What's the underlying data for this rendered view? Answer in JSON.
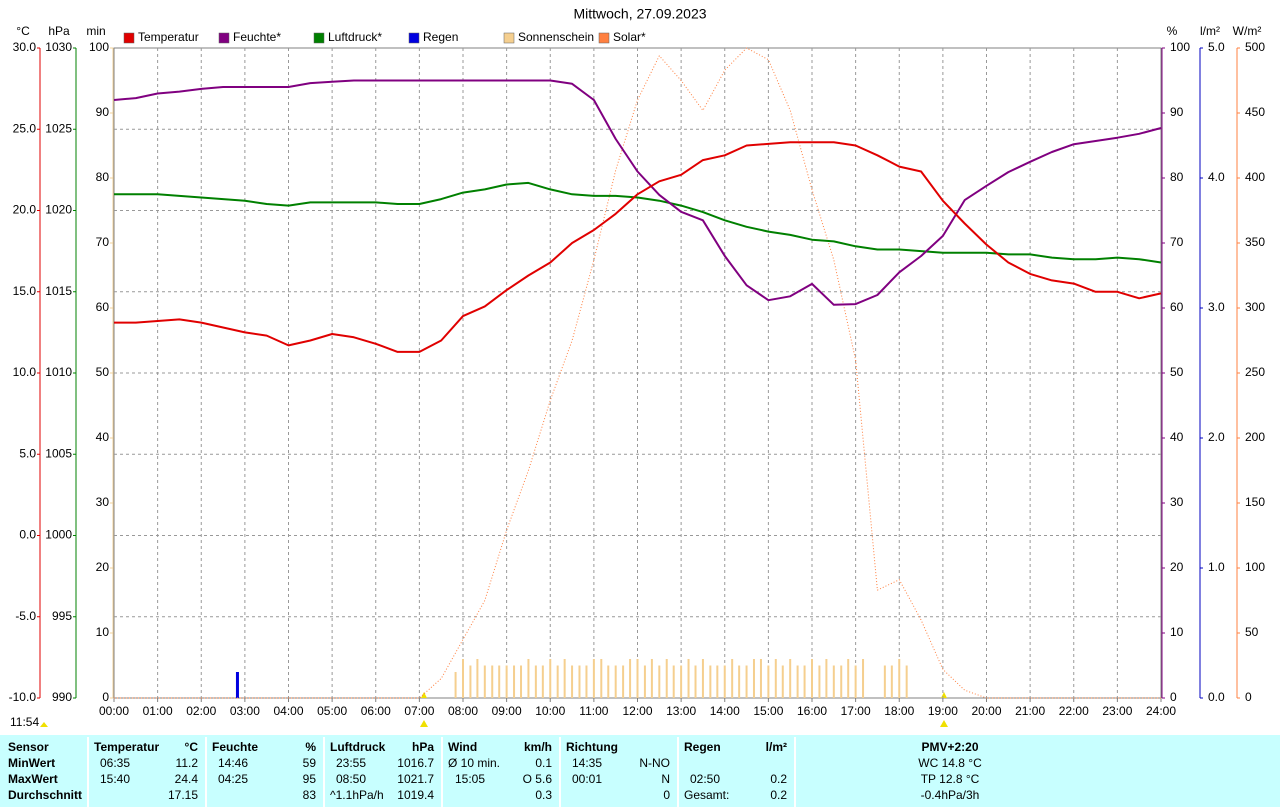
{
  "chart_data": {
    "type": "line",
    "title": "Mittwoch, 27.09.2023",
    "grid": true,
    "legend": "top",
    "xlim": [
      0,
      24
    ],
    "xticks": [
      {
        "value": 0,
        "label": "00:00"
      },
      {
        "value": 1,
        "label": "01:00"
      },
      {
        "value": 2,
        "label": "02:00"
      },
      {
        "value": 3,
        "label": "03:00"
      },
      {
        "value": 4,
        "label": "04:00"
      },
      {
        "value": 5,
        "label": "05:00"
      },
      {
        "value": 6,
        "label": "06:00"
      },
      {
        "value": 7,
        "label": "07:00"
      },
      {
        "value": 8,
        "label": "08:00"
      },
      {
        "value": 9,
        "label": "09:00"
      },
      {
        "value": 10,
        "label": "10:00"
      },
      {
        "value": 11,
        "label": "11:00"
      },
      {
        "value": 12,
        "label": "12:00"
      },
      {
        "value": 13,
        "label": "13:00"
      },
      {
        "value": 14,
        "label": "14:00"
      },
      {
        "value": 15,
        "label": "15:00"
      },
      {
        "value": 16,
        "label": "16:00"
      },
      {
        "value": 17,
        "label": "17:00"
      },
      {
        "value": 18,
        "label": "18:00"
      },
      {
        "value": 19,
        "label": "19:00"
      },
      {
        "value": 20,
        "label": "20:00"
      },
      {
        "value": 21,
        "label": "21:00"
      },
      {
        "value": 22,
        "label": "22:00"
      },
      {
        "value": 23,
        "label": "23:00"
      },
      {
        "value": 24,
        "label": "24:00"
      }
    ],
    "axes": {
      "y": {
        "label": "°C",
        "color": "#e00000",
        "side": "left",
        "lim": [
          -10,
          30
        ],
        "ticks": [
          {
            "value": -10,
            "label": "-10.0"
          },
          {
            "value": -5,
            "label": "-5.0"
          },
          {
            "value": 0,
            "label": "0.0"
          },
          {
            "value": 5,
            "label": "5.0"
          },
          {
            "value": 10,
            "label": "10.0"
          },
          {
            "value": 15,
            "label": "15.0"
          },
          {
            "value": 20,
            "label": "20.0"
          },
          {
            "value": 25,
            "label": "25.0"
          },
          {
            "value": 30,
            "label": "30.0"
          }
        ]
      },
      "y2": {
        "label": "hPa",
        "color": "#008000",
        "side": "left",
        "lim": [
          990,
          1030
        ],
        "ticks": [
          990,
          995,
          1000,
          1005,
          1010,
          1015,
          1020,
          1025,
          1030
        ]
      },
      "y3": {
        "label": "min",
        "color": "#f0d098",
        "side": "left",
        "lim": [
          0,
          100
        ],
        "ticks": [
          0,
          10,
          20,
          30,
          40,
          50,
          60,
          70,
          80,
          90,
          100
        ]
      },
      "y4": {
        "label": "%",
        "color": "#800080",
        "side": "right",
        "lim": [
          0,
          100
        ],
        "ticks": [
          0,
          10,
          20,
          30,
          40,
          50,
          60,
          70,
          80,
          90,
          100
        ]
      },
      "y5": {
        "label": "l/m²",
        "color": "#0000c0",
        "side": "right",
        "lim": [
          0,
          5
        ],
        "ticks": [
          {
            "value": 0,
            "label": "0.0"
          },
          {
            "value": 1,
            "label": "1.0"
          },
          {
            "value": 2,
            "label": "2.0"
          },
          {
            "value": 3,
            "label": "3.0"
          },
          {
            "value": 4,
            "label": "4.0"
          },
          {
            "value": 5,
            "label": "5.0"
          }
        ]
      },
      "y6": {
        "label": "W/m²",
        "color": "#ff8040",
        "side": "right",
        "lim": [
          0,
          500
        ],
        "ticks": [
          0,
          50,
          100,
          150,
          200,
          250,
          300,
          350,
          400,
          450,
          500
        ]
      }
    },
    "x": [
      0,
      0.5,
      1,
      1.5,
      2,
      2.5,
      3,
      3.5,
      4,
      4.5,
      5,
      5.5,
      6,
      6.5,
      7,
      7.5,
      8,
      8.5,
      9,
      9.5,
      10,
      10.5,
      11,
      11.5,
      12,
      12.5,
      13,
      13.5,
      14,
      14.5,
      15,
      15.5,
      16,
      16.5,
      17,
      17.5,
      18,
      18.5,
      19,
      19.5,
      20,
      20.5,
      21,
      21.5,
      22,
      22.5,
      23,
      23.5,
      24
    ],
    "series": [
      {
        "name": "Temperatur",
        "color": "#e00000",
        "axis": "y",
        "type": "line",
        "values": [
          13.1,
          13.1,
          13.2,
          13.3,
          13.1,
          12.8,
          12.5,
          12.3,
          11.7,
          12.0,
          12.4,
          12.2,
          11.8,
          11.3,
          11.3,
          12.0,
          13.5,
          14.1,
          15.1,
          16.0,
          16.8,
          18.0,
          18.8,
          19.8,
          21.0,
          21.8,
          22.2,
          23.1,
          23.4,
          24.0,
          24.1,
          24.2,
          24.2,
          24.2,
          24.0,
          23.4,
          22.7,
          22.4,
          20.6,
          19.2,
          17.9,
          16.8,
          16.1,
          15.7,
          15.5,
          15.0,
          15.0,
          14.6,
          14.9
        ]
      },
      {
        "name": "Feuchte*",
        "color": "#800080",
        "axis": "y4",
        "type": "line",
        "values": [
          92,
          92.3,
          93,
          93.3,
          93.7,
          94,
          94,
          94,
          94,
          94.6,
          94.8,
          95,
          95,
          95,
          95,
          95,
          95,
          95,
          95,
          95,
          95,
          94.5,
          92,
          86,
          81,
          77.4,
          74.8,
          73.5,
          68,
          63.5,
          61.2,
          61.8,
          63.7,
          60.5,
          60.6,
          62,
          65.5,
          68,
          71.1,
          76.6,
          78.8,
          80.9,
          82.5,
          84,
          85.2,
          85.7,
          86.2,
          86.8,
          87.7
        ]
      },
      {
        "name": "Luftdruck*",
        "color": "#008000",
        "axis": "y2",
        "type": "line",
        "values": [
          1021.0,
          1021.0,
          1021.0,
          1020.9,
          1020.8,
          1020.7,
          1020.6,
          1020.4,
          1020.3,
          1020.5,
          1020.5,
          1020.5,
          1020.5,
          1020.4,
          1020.4,
          1020.7,
          1021.1,
          1021.3,
          1021.6,
          1021.7,
          1021.3,
          1021.0,
          1020.9,
          1020.9,
          1020.8,
          1020.6,
          1020.3,
          1019.9,
          1019.4,
          1019.0,
          1018.7,
          1018.5,
          1018.2,
          1018.1,
          1017.8,
          1017.6,
          1017.6,
          1017.5,
          1017.4,
          1017.4,
          1017.4,
          1017.3,
          1017.3,
          1017.1,
          1017.0,
          1017.0,
          1017.1,
          1017.0,
          1016.8
        ]
      },
      {
        "name": "Regen",
        "color": "#0000e0",
        "axis": "y5",
        "type": "bar",
        "x": [
          2.83
        ],
        "values": [
          0.2
        ]
      },
      {
        "name": "Sonnenschein",
        "color": "#f5cf8f",
        "axis": "y3",
        "type": "bar",
        "x": [
          7.83,
          8,
          8.17,
          8.33,
          8.5,
          8.67,
          8.83,
          9,
          9.17,
          9.33,
          9.5,
          9.67,
          9.83,
          10,
          10.17,
          10.33,
          10.5,
          10.67,
          10.83,
          11,
          11.17,
          11.33,
          11.5,
          11.67,
          11.83,
          12,
          12.17,
          12.33,
          12.5,
          12.67,
          12.83,
          13,
          13.17,
          13.33,
          13.5,
          13.67,
          13.83,
          14,
          14.17,
          14.33,
          14.5,
          14.67,
          14.83,
          15,
          15.17,
          15.33,
          15.5,
          15.67,
          15.83,
          16,
          16.17,
          16.33,
          16.5,
          16.67,
          16.83,
          17,
          17.17,
          17.67,
          17.83,
          18,
          18.17
        ],
        "values": [
          4,
          6,
          5,
          6,
          5,
          5,
          5,
          5,
          5,
          5,
          6,
          5,
          5,
          6,
          5,
          6,
          5,
          5,
          5,
          6,
          6,
          5,
          5,
          5,
          6,
          6,
          5,
          6,
          5,
          6,
          5,
          5,
          6,
          5,
          6,
          5,
          5,
          5,
          6,
          5,
          5,
          6,
          6,
          5,
          6,
          5,
          6,
          5,
          5,
          6,
          5,
          6,
          5,
          5,
          6,
          5,
          6,
          5,
          5,
          6,
          5
        ]
      },
      {
        "name": "Solar*",
        "color": "#ff8040",
        "axis": "y6",
        "type": "line",
        "style": "dotted",
        "values": [
          0,
          0,
          0,
          0,
          0,
          0,
          0,
          0,
          0,
          0,
          0,
          0,
          0,
          0,
          0,
          15,
          45,
          75,
          129,
          175,
          229,
          275,
          337,
          406,
          460,
          494,
          475,
          452,
          483,
          500,
          491,
          452,
          391,
          337,
          260,
          83,
          91,
          60,
          22,
          6,
          0,
          0,
          0,
          0,
          0,
          0,
          0,
          0,
          0
        ]
      }
    ]
  },
  "time_note": "11:54",
  "stats_table": {
    "header": [
      "Sensor",
      "Temperatur",
      "°C",
      "Feuchte",
      "%",
      "Luftdruck",
      "hPa",
      "Wind",
      "km/h",
      "Richtung",
      "Regen",
      "l/m²",
      "PMV+2:20"
    ],
    "min_row": [
      "MinWert",
      "06:35",
      "11.2",
      "14:46",
      "59",
      "23:55",
      "1016.7",
      "Ø 10 min.",
      "0.1",
      "14:35",
      "N-NO",
      "WC 14.8 °C"
    ],
    "max_row": [
      "MaxWert",
      "15:40",
      "24.4",
      "04:25",
      "95",
      "08:50",
      "1021.7",
      "15:05",
      "O 5.6",
      "00:01",
      "N",
      "02:50",
      "0.2",
      "TP 12.8 °C"
    ],
    "avg_row": [
      "Durchschnitt",
      "17.15",
      "83",
      "^1.1hPa/h",
      "1019.4",
      "0.3",
      "0",
      "Gesamt:",
      "0.2",
      "-0.4hPa/3h"
    ]
  }
}
